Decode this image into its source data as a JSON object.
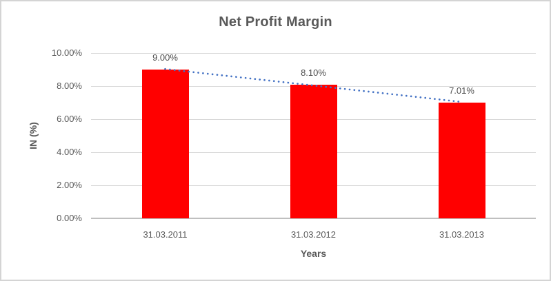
{
  "chart_data": {
    "type": "bar",
    "title": "Net Profit Margin",
    "xlabel": "Years",
    "ylabel": "IN (%)",
    "categories": [
      "31.03.2011",
      "31.03.2012",
      "31.03.2013"
    ],
    "values": [
      9.0,
      8.1,
      7.01
    ],
    "data_labels": [
      "9.00%",
      "8.10%",
      "7.01%"
    ],
    "ytick_labels": [
      "10.00%",
      "8.00%",
      "6.00%",
      "4.00%",
      "2.00%",
      "0.00%"
    ],
    "ylim": [
      0,
      10
    ],
    "ytick_step": 2,
    "grid": true,
    "legend": "none",
    "trendline": {
      "type": "linear",
      "style": "dotted"
    }
  },
  "colors": {
    "bar": "#ff0000",
    "trendline": "#4472c4",
    "gridline": "#d9d9d9",
    "axis_line": "#bfbfbf",
    "text": "#595959",
    "frame_border": "#d4d4d4"
  }
}
